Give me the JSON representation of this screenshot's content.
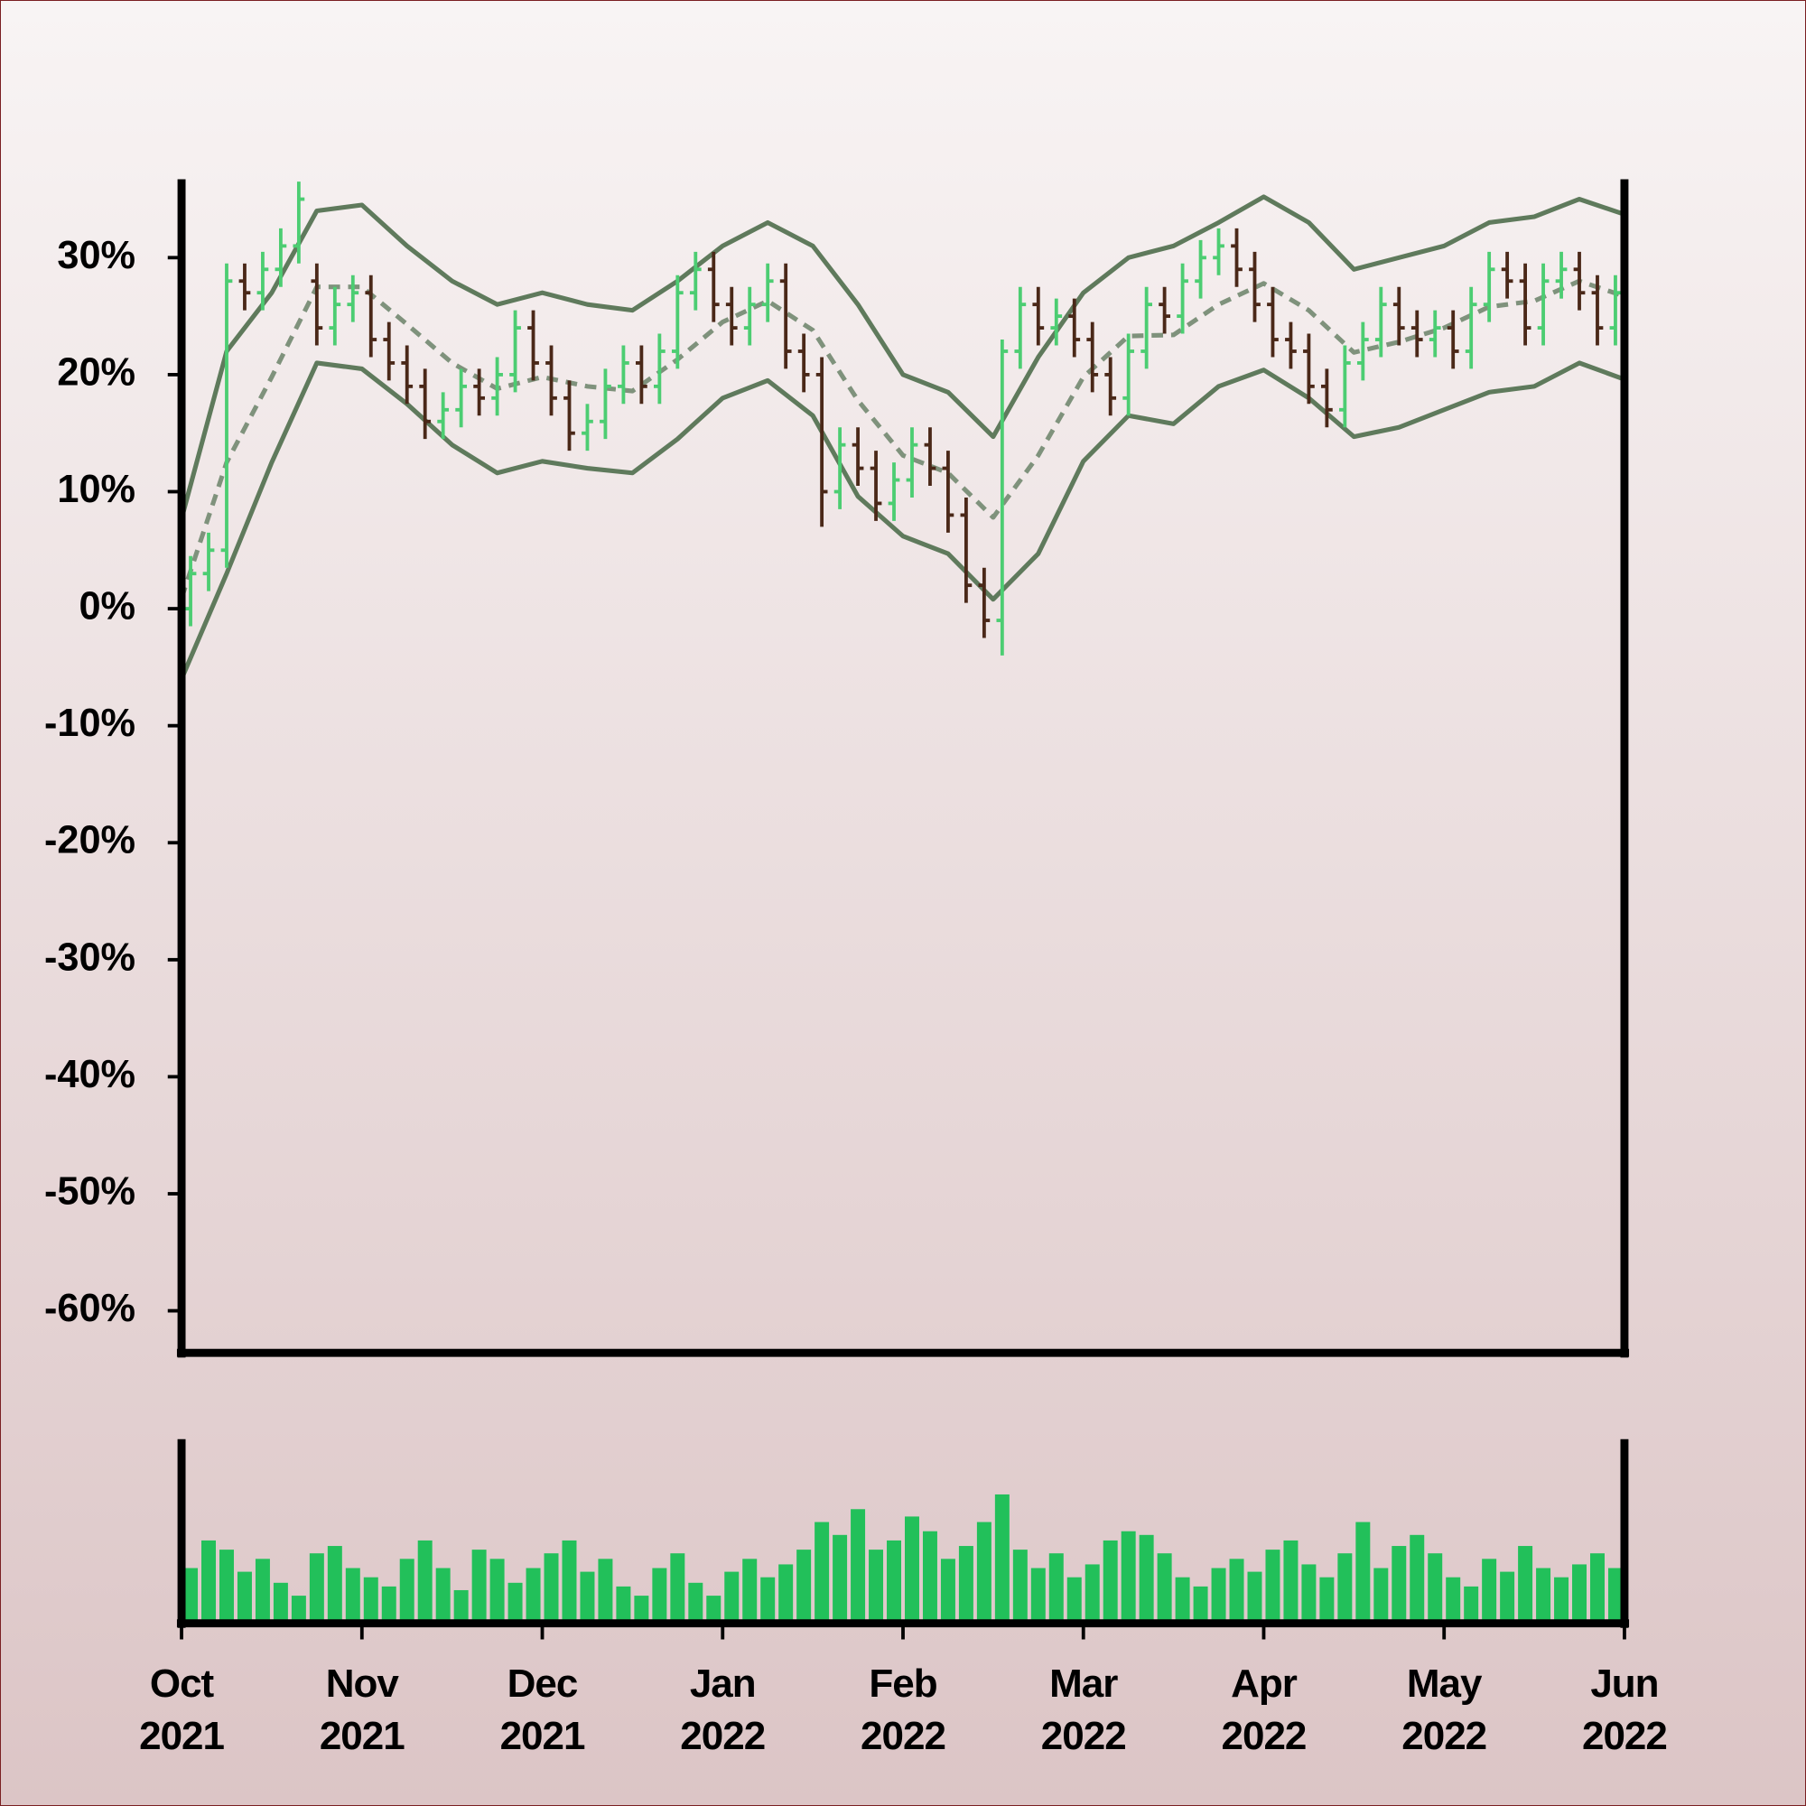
{
  "chart_data": {
    "type": "ohlc",
    "x": [
      0.05,
      0.15,
      0.25,
      0.35,
      0.45,
      0.55,
      0.65,
      0.75,
      0.85,
      0.95,
      1.05,
      1.15,
      1.25,
      1.35,
      1.45,
      1.55,
      1.65,
      1.75,
      1.85,
      1.95,
      2.05,
      2.15,
      2.25,
      2.35,
      2.45,
      2.55,
      2.65,
      2.75,
      2.85,
      2.95,
      3.05,
      3.15,
      3.25,
      3.35,
      3.45,
      3.55,
      3.65,
      3.75,
      3.85,
      3.95,
      4.05,
      4.15,
      4.25,
      4.35,
      4.45,
      4.55,
      4.65,
      4.75,
      4.85,
      4.95,
      5.05,
      5.15,
      5.25,
      5.35,
      5.45,
      5.55,
      5.65,
      5.75,
      5.85,
      5.95,
      6.05,
      6.15,
      6.25,
      6.35,
      6.45,
      6.55,
      6.65,
      6.75,
      6.85,
      6.95,
      7.05,
      7.15,
      7.25,
      7.35,
      7.45,
      7.55,
      7.65,
      7.75,
      7.85,
      7.95
    ],
    "open": [
      0,
      3,
      5,
      28,
      27,
      29,
      31,
      28,
      24,
      26,
      27,
      23,
      21,
      19,
      16,
      17,
      19,
      18,
      20,
      24,
      21,
      18,
      15,
      16,
      19,
      21,
      19,
      22,
      27,
      29,
      26,
      24,
      26,
      28,
      22,
      20,
      10,
      14,
      12,
      9,
      11,
      14,
      12,
      8,
      2,
      -1,
      22,
      26,
      24,
      25,
      23,
      20,
      18,
      22,
      26,
      25,
      28,
      30,
      31,
      29,
      26,
      23,
      22,
      19,
      17,
      21,
      23,
      26,
      24,
      23,
      24,
      22,
      26,
      29,
      28,
      24,
      28,
      29,
      27,
      24
    ],
    "high": [
      4.5,
      6.5,
      29.5,
      29.5,
      30.5,
      32.5,
      36.5,
      29.5,
      27.5,
      28.5,
      28.5,
      24.5,
      22.5,
      20.5,
      18.5,
      20.5,
      20.5,
      21.5,
      25.5,
      25.5,
      22.5,
      19.5,
      17.5,
      20.5,
      22.5,
      22.5,
      23.5,
      28.5,
      30.5,
      30.5,
      27.5,
      27.5,
      29.5,
      29.5,
      23.5,
      21.5,
      15.5,
      15.5,
      13.5,
      12.5,
      15.5,
      15.5,
      13.5,
      9.5,
      3.5,
      23,
      27.5,
      27.5,
      26.5,
      26.5,
      24.5,
      21.5,
      23.5,
      27.5,
      27.5,
      29.5,
      31.5,
      32.5,
      32.5,
      30.5,
      27.5,
      24.5,
      23.5,
      20.5,
      22.5,
      24.5,
      27.5,
      27.5,
      25.5,
      25.5,
      25.5,
      27.5,
      30.5,
      30.5,
      29.5,
      29.5,
      30.5,
      30.5,
      28.5,
      28.5
    ],
    "low": [
      -1.5,
      1.5,
      3.5,
      25.5,
      25.5,
      27.5,
      29.5,
      22.5,
      22.5,
      24.5,
      21.5,
      19.5,
      17.5,
      14.5,
      14.5,
      15.5,
      16.5,
      16.5,
      18.5,
      19.5,
      16.5,
      13.5,
      13.5,
      14.5,
      17.5,
      17.5,
      17.5,
      20.5,
      25.5,
      24.5,
      22.5,
      22.5,
      24.5,
      20.5,
      18.5,
      7,
      8.5,
      10.5,
      7.5,
      7.5,
      9.5,
      10.5,
      6.5,
      0.5,
      -2.5,
      -4,
      20.5,
      22.5,
      22.5,
      21.5,
      18.5,
      16.5,
      16.5,
      20.5,
      23.5,
      23.5,
      26.5,
      28.5,
      27.5,
      24.5,
      21.5,
      20.5,
      17.5,
      15.5,
      15.5,
      19.5,
      21.5,
      22.5,
      21.5,
      21.5,
      20.5,
      20.5,
      24.5,
      26.5,
      22.5,
      22.5,
      26.5,
      25.5,
      22.5,
      22.5
    ],
    "close": [
      3,
      5,
      28,
      27,
      29,
      31,
      35,
      24,
      26,
      27,
      23,
      21,
      19,
      16,
      17,
      19,
      18,
      20,
      24,
      21,
      18,
      15,
      16,
      19,
      21,
      19,
      22,
      27,
      29,
      26,
      24,
      26,
      28,
      22,
      20,
      10,
      14,
      12,
      9,
      11,
      14,
      12,
      8,
      2,
      -1,
      22,
      26,
      24,
      25,
      23,
      20,
      18,
      22,
      26,
      25,
      28,
      30,
      31,
      29,
      26,
      23,
      22,
      19,
      17,
      21,
      23,
      26,
      24,
      23,
      24,
      22,
      26,
      29,
      28,
      24,
      28,
      29,
      27,
      24,
      27
    ],
    "up_color": "#4ccd72",
    "down_color": "#4a2818",
    "xlim": [
      0,
      8
    ],
    "xticks": [
      {
        "value": 0,
        "label": "Oct\n2021"
      },
      {
        "value": 1,
        "label": "Nov\n2021"
      },
      {
        "value": 2,
        "label": "Dec\n2021"
      },
      {
        "value": 3,
        "label": "Jan\n2022"
      },
      {
        "value": 4,
        "label": "Feb\n2022"
      },
      {
        "value": 5,
        "label": "Mar\n2022"
      },
      {
        "value": 6,
        "label": "Apr\n2022"
      },
      {
        "value": 7,
        "label": "May\n2022"
      },
      {
        "value": 8,
        "label": "Jun\n2022"
      }
    ],
    "ylim": [
      -63.6,
      36.7
    ],
    "yticks": [
      {
        "value": 30,
        "label": "30%"
      },
      {
        "value": 20,
        "label": "20%"
      },
      {
        "value": 10,
        "label": "10%"
      },
      {
        "value": 0,
        "label": "0%"
      },
      {
        "value": -10,
        "label": "-10%"
      },
      {
        "value": -20,
        "label": "-20%"
      },
      {
        "value": -30,
        "label": "-30%"
      },
      {
        "value": -40,
        "label": "-40%"
      },
      {
        "value": -50,
        "label": "-50%"
      },
      {
        "value": -60,
        "label": "-60%"
      }
    ],
    "bands": {
      "x": [
        0,
        0.25,
        0.5,
        0.75,
        1,
        1.25,
        1.5,
        1.75,
        2,
        2.25,
        2.5,
        2.75,
        3,
        3.25,
        3.5,
        3.75,
        4,
        4.25,
        4.5,
        4.75,
        5,
        5.25,
        5.5,
        5.75,
        6,
        6.25,
        6.5,
        6.75,
        7,
        7.25,
        7.5,
        7.75,
        8
      ],
      "upper": [
        7.7,
        22,
        27,
        34,
        34.5,
        31,
        28,
        26,
        27,
        26,
        25.5,
        28,
        31,
        33,
        31,
        26,
        20,
        18.5,
        14.7,
        21.5,
        27,
        30,
        31,
        33,
        35.2,
        33,
        29,
        30,
        31,
        33,
        33.5,
        35,
        33.7
      ],
      "middle": [
        0.9,
        12.5,
        19.8,
        27.5,
        27.5,
        24.3,
        21,
        18.8,
        19.8,
        19,
        18.6,
        21.3,
        24.5,
        26.3,
        23.8,
        17.8,
        13.1,
        11.6,
        7.8,
        13.1,
        19.8,
        23.3,
        23.4,
        26,
        27.8,
        25.5,
        21.9,
        22.8,
        24,
        25.8,
        26.3,
        28,
        26.7
      ],
      "lower": [
        -6,
        3,
        12.5,
        21,
        20.5,
        17.5,
        14,
        11.6,
        12.6,
        12,
        11.6,
        14.5,
        18,
        19.5,
        16.5,
        9.6,
        6.2,
        4.7,
        0.8,
        4.7,
        12.6,
        16.5,
        15.8,
        19,
        20.4,
        18,
        14.7,
        15.5,
        17,
        18.5,
        19,
        21,
        19.6
      ],
      "color": "#5f7a5c",
      "middle_color": "#7f927c"
    },
    "volume": {
      "values": [
        30,
        45,
        40,
        28,
        35,
        22,
        15,
        38,
        42,
        30,
        25,
        20,
        35,
        45,
        30,
        18,
        40,
        35,
        22,
        30,
        38,
        45,
        28,
        35,
        20,
        15,
        30,
        38,
        22,
        15,
        28,
        35,
        25,
        32,
        40,
        55,
        48,
        62,
        40,
        45,
        58,
        50,
        35,
        42,
        55,
        70,
        40,
        30,
        38,
        25,
        32,
        45,
        50,
        48,
        38,
        25,
        20,
        30,
        35,
        28,
        40,
        45,
        32,
        25,
        38,
        55,
        30,
        42,
        48,
        38,
        25,
        20,
        35,
        28,
        42,
        30,
        25,
        32,
        38,
        30
      ],
      "ylim": [
        0,
        100
      ],
      "color": "#22c05a"
    }
  }
}
